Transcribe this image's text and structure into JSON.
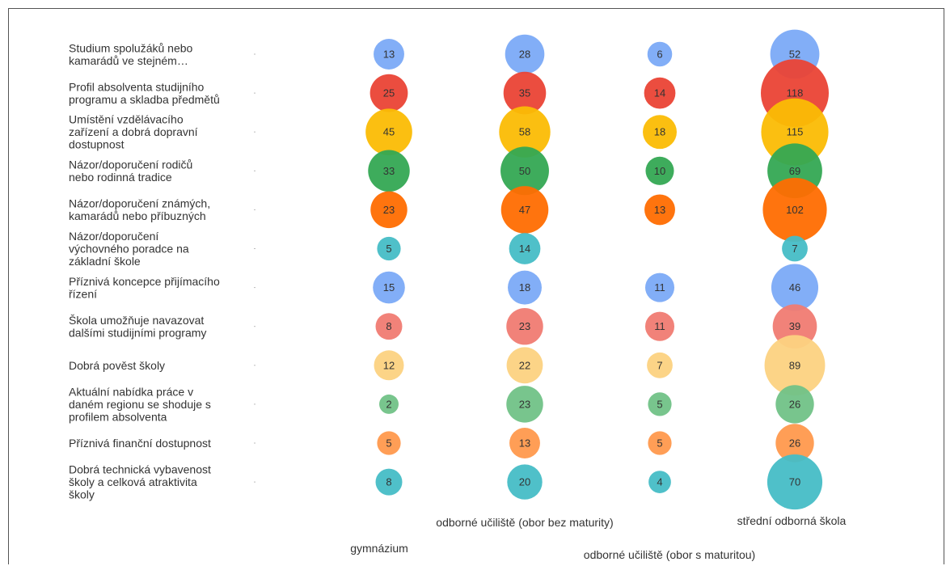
{
  "chart_data": {
    "type": "bubble",
    "title": "",
    "categories": [
      "Studium spolužáků nebo kamarádů ve stejném…",
      "Profil absolventa studijního programu a skladba předmětů",
      "Umístění vzdělávacího zařízení a dobrá dopravní dostupnost",
      "Názor/doporučení rodičů nebo rodinná tradice",
      "Názor/doporučení známých, kamarádů nebo příbuzných",
      "Názor/doporučení výchovného poradce na základní škole",
      "Příznivá koncepce přijímacího řízení",
      "Škola umožňuje navazovat dalšími studijními programy",
      "Dobrá pověst školy",
      "Aktuální nabídka práce v daném regionu se shoduje s profilem absolventa",
      "Příznivá finanční dostupnost",
      "Dobrá technická vybavenost školy a celková atraktivita školy"
    ],
    "category_lines": [
      [
        "Studium spolužáků nebo",
        "kamarádů ve stejném…"
      ],
      [
        "Profil absolventa studijního",
        "programu a skladba předmětů"
      ],
      [
        "Umístění vzdělávacího",
        "zařízení a dobrá dopravní",
        "dostupnost"
      ],
      [
        "Názor/doporučení rodičů",
        "nebo rodinná tradice"
      ],
      [
        "Názor/doporučení známých,",
        "kamarádů nebo příbuzných"
      ],
      [
        "Názor/doporučení",
        "výchovného poradce na",
        "základní škole"
      ],
      [
        "Příznivá koncepce přijímacího",
        "řízení"
      ],
      [
        "Škola umožňuje navazovat",
        "dalšími studijními programy"
      ],
      [
        "Dobrá pověst školy"
      ],
      [
        "Aktuální nabídka práce v",
        "daném regionu se shoduje s",
        "profilem absolventa"
      ],
      [
        "Příznivá finanční dostupnost"
      ],
      [
        "Dobrá technická vybavenost",
        "školy a celková atraktivita",
        "školy"
      ]
    ],
    "category_colors": [
      "#7baaf7",
      "#ea4335",
      "#fbbc04",
      "#34a853",
      "#ff6d01",
      "#46bdc6",
      "#7baaf7",
      "#f07b72",
      "#fcd281",
      "#71c287",
      "#ff994d",
      "#46bdc6"
    ],
    "series": [
      {
        "name": "gymnázium",
        "values": [
          13,
          25,
          45,
          33,
          23,
          5,
          15,
          8,
          12,
          2,
          5,
          8
        ]
      },
      {
        "name": "odborné učiliště (obor bez maturity)",
        "values": [
          28,
          35,
          58,
          50,
          47,
          14,
          18,
          23,
          22,
          23,
          13,
          20
        ]
      },
      {
        "name": "odborné učiliště (obor s maturitou)",
        "values": [
          6,
          14,
          18,
          10,
          13,
          null,
          11,
          11,
          7,
          5,
          5,
          4
        ]
      },
      {
        "name": "střední odborná škola",
        "values": [
          52,
          118,
          115,
          69,
          102,
          7,
          46,
          39,
          89,
          26,
          26,
          70
        ]
      }
    ],
    "value_labels": [
      [
        "13",
        "25",
        "45",
        "33",
        "23",
        "5",
        "15",
        "8",
        "12",
        "2",
        "5",
        "8"
      ],
      [
        "28",
        "35",
        "58",
        "50",
        "47",
        "14",
        "18",
        "23",
        "22",
        "23",
        "13",
        "20"
      ],
      [
        "6",
        "14",
        "18",
        "10",
        "13",
        "",
        "11",
        "11",
        "7",
        "5",
        "5",
        "4"
      ],
      [
        "52",
        "118",
        "115",
        "69",
        "102",
        "7",
        "46",
        "39",
        "89",
        "26",
        "26",
        "70"
      ]
    ],
    "x_labels": [
      "gymnázium",
      "odborné učiliště (obor bez maturity)",
      "odborné učiliště (obor s maturitou)",
      "střední odborná škola"
    ],
    "legend": "none",
    "grid": false
  }
}
